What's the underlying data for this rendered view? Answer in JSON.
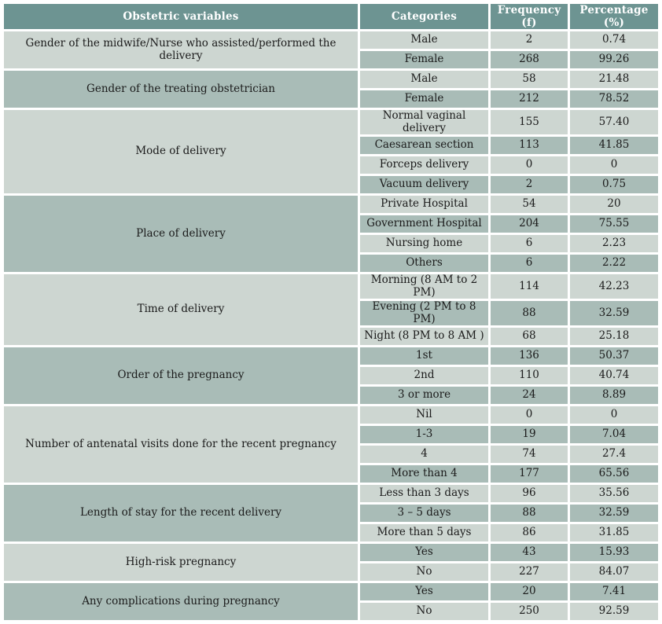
{
  "colors": {
    "header_bg": "#6d9492",
    "header_text": "#ffffff",
    "row_light": "#cdd6d1",
    "row_dark": "#a9bcb7",
    "grid": "#ffffff",
    "text": "#1b1b1b"
  },
  "table": {
    "headers": {
      "variable": "Obstetric variables",
      "category": "Categories",
      "frequency": "Frequency (f)",
      "percentage": "Percentage (%)"
    },
    "groups": [
      {
        "variable": "Gender of the midwife/Nurse who assisted/performed the delivery",
        "rows": [
          {
            "category": "Male",
            "frequency": "2",
            "percentage": "0.74"
          },
          {
            "category": "Female",
            "frequency": "268",
            "percentage": "99.26"
          }
        ]
      },
      {
        "variable": "Gender of the treating obstetrician",
        "rows": [
          {
            "category": "Male",
            "frequency": "58",
            "percentage": "21.48"
          },
          {
            "category": "Female",
            "frequency": "212",
            "percentage": "78.52"
          }
        ]
      },
      {
        "variable": "Mode of delivery",
        "rows": [
          {
            "category": "Normal vaginal delivery",
            "frequency": "155",
            "percentage": "57.40"
          },
          {
            "category": "Caesarean section",
            "frequency": "113",
            "percentage": "41.85"
          },
          {
            "category": "Forceps delivery",
            "frequency": "0",
            "percentage": "0"
          },
          {
            "category": "Vacuum delivery",
            "frequency": "2",
            "percentage": "0.75"
          }
        ]
      },
      {
        "variable": "Place of delivery",
        "rows": [
          {
            "category": "Private Hospital",
            "frequency": "54",
            "percentage": "20"
          },
          {
            "category": "Government Hospital",
            "frequency": "204",
            "percentage": "75.55"
          },
          {
            "category": "Nursing home",
            "frequency": "6",
            "percentage": "2.23"
          },
          {
            "category": "Others",
            "frequency": "6",
            "percentage": "2.22"
          }
        ]
      },
      {
        "variable": "Time of delivery",
        "rows": [
          {
            "category": "Morning (8 AM to 2 PM)",
            "frequency": "114",
            "percentage": "42.23"
          },
          {
            "category": "Evening (2 PM to 8 PM)",
            "frequency": "88",
            "percentage": "32.59"
          },
          {
            "category": "Night (8 PM to 8 AM )",
            "frequency": "68",
            "percentage": "25.18"
          }
        ]
      },
      {
        "variable": "Order of the pregnancy",
        "rows": [
          {
            "category": "1st",
            "frequency": "136",
            "percentage": "50.37"
          },
          {
            "category": "2nd",
            "frequency": "110",
            "percentage": "40.74"
          },
          {
            "category": "3 or more",
            "frequency": "24",
            "percentage": "8.89"
          }
        ]
      },
      {
        "variable": "Number of antenatal visits done for the recent pregnancy",
        "rows": [
          {
            "category": "Nil",
            "frequency": "0",
            "percentage": "0"
          },
          {
            "category": "1-3",
            "frequency": "19",
            "percentage": "7.04"
          },
          {
            "category": "4",
            "frequency": "74",
            "percentage": "27.4"
          },
          {
            "category": "More than 4",
            "frequency": "177",
            "percentage": "65.56"
          }
        ]
      },
      {
        "variable": "Length of stay for the recent delivery",
        "rows": [
          {
            "category": "Less than 3 days",
            "frequency": "96",
            "percentage": "35.56"
          },
          {
            "category": "3 – 5 days",
            "frequency": "88",
            "percentage": "32.59"
          },
          {
            "category": "More than 5 days",
            "frequency": "86",
            "percentage": "31.85"
          }
        ]
      },
      {
        "variable": "High-risk pregnancy",
        "rows": [
          {
            "category": "Yes",
            "frequency": "43",
            "percentage": "15.93"
          },
          {
            "category": "No",
            "frequency": "227",
            "percentage": "84.07"
          }
        ]
      },
      {
        "variable": "Any complications during pregnancy",
        "rows": [
          {
            "category": "Yes",
            "frequency": "20",
            "percentage": "7.41"
          },
          {
            "category": "No",
            "frequency": "250",
            "percentage": "92.59"
          }
        ]
      }
    ]
  }
}
